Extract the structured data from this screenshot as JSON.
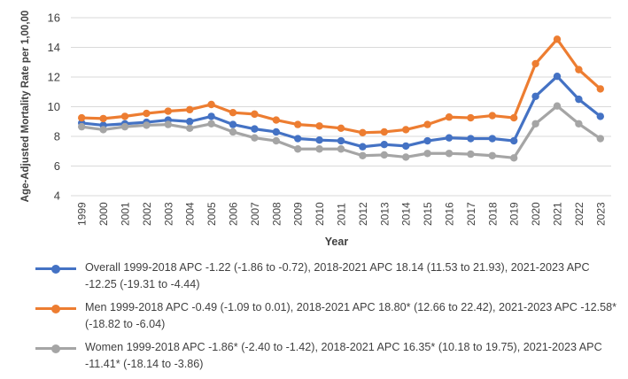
{
  "chart_data": {
    "type": "line",
    "title": "",
    "xlabel": "Year",
    "ylabel": "Age-Adjusted Mortality Rate per 1,00,00",
    "ylim": [
      4,
      16
    ],
    "yticks": [
      "4",
      "6",
      "8",
      "10",
      "12",
      "14",
      "16"
    ],
    "grid": true,
    "legend_position": "bottom",
    "categories": [
      "1999",
      "2000",
      "2001",
      "2002",
      "2003",
      "2004",
      "2005",
      "2006",
      "2007",
      "2008",
      "2009",
      "2010",
      "2011",
      "2012",
      "2013",
      "2014",
      "2015",
      "2016",
      "2017",
      "2018",
      "2019",
      "2020",
      "2021",
      "2022",
      "2023"
    ],
    "series": [
      {
        "name": "Overall 1999-2018 APC -1.22 (-1.86 to -0.72), 2018-2021 APC 18.14 (11.53 to 21.93), 2021-2023 APC -12.25 (-19.31 to -4.44)",
        "color": "#4472c4",
        "values": [
          8.9,
          8.75,
          8.85,
          8.95,
          9.1,
          9.0,
          9.35,
          8.8,
          8.5,
          8.3,
          7.85,
          7.75,
          7.7,
          7.3,
          7.45,
          7.35,
          7.7,
          7.9,
          7.85,
          7.85,
          7.7,
          10.7,
          12.05,
          10.5,
          9.35
        ]
      },
      {
        "name": "Men 1999-2018 APC -0.49 (-1.09 to 0.01), 2018-2021 APC 18.80* (12.66 to 22.42), 2021-2023 APC -12.58* (-18.82 to -6.04)",
        "color": "#ed7d31",
        "values": [
          9.25,
          9.2,
          9.35,
          9.55,
          9.7,
          9.8,
          10.15,
          9.6,
          9.5,
          9.1,
          8.8,
          8.7,
          8.55,
          8.25,
          8.3,
          8.45,
          8.8,
          9.3,
          9.25,
          9.4,
          9.25,
          12.9,
          14.55,
          12.5,
          11.2
        ]
      },
      {
        "name": "Women 1999-2018 APC -1.86* (-2.40 to -1.42), 2018-2021 APC 16.35* (10.18 to 19.75), 2021-2023 APC -11.41* (-18.14 to -3.86)",
        "color": "#a5a5a5",
        "values": [
          8.65,
          8.45,
          8.65,
          8.75,
          8.8,
          8.55,
          8.85,
          8.3,
          7.9,
          7.7,
          7.15,
          7.15,
          7.15,
          6.7,
          6.75,
          6.6,
          6.85,
          6.85,
          6.8,
          6.7,
          6.55,
          8.85,
          10.05,
          8.85,
          7.85
        ]
      }
    ]
  }
}
